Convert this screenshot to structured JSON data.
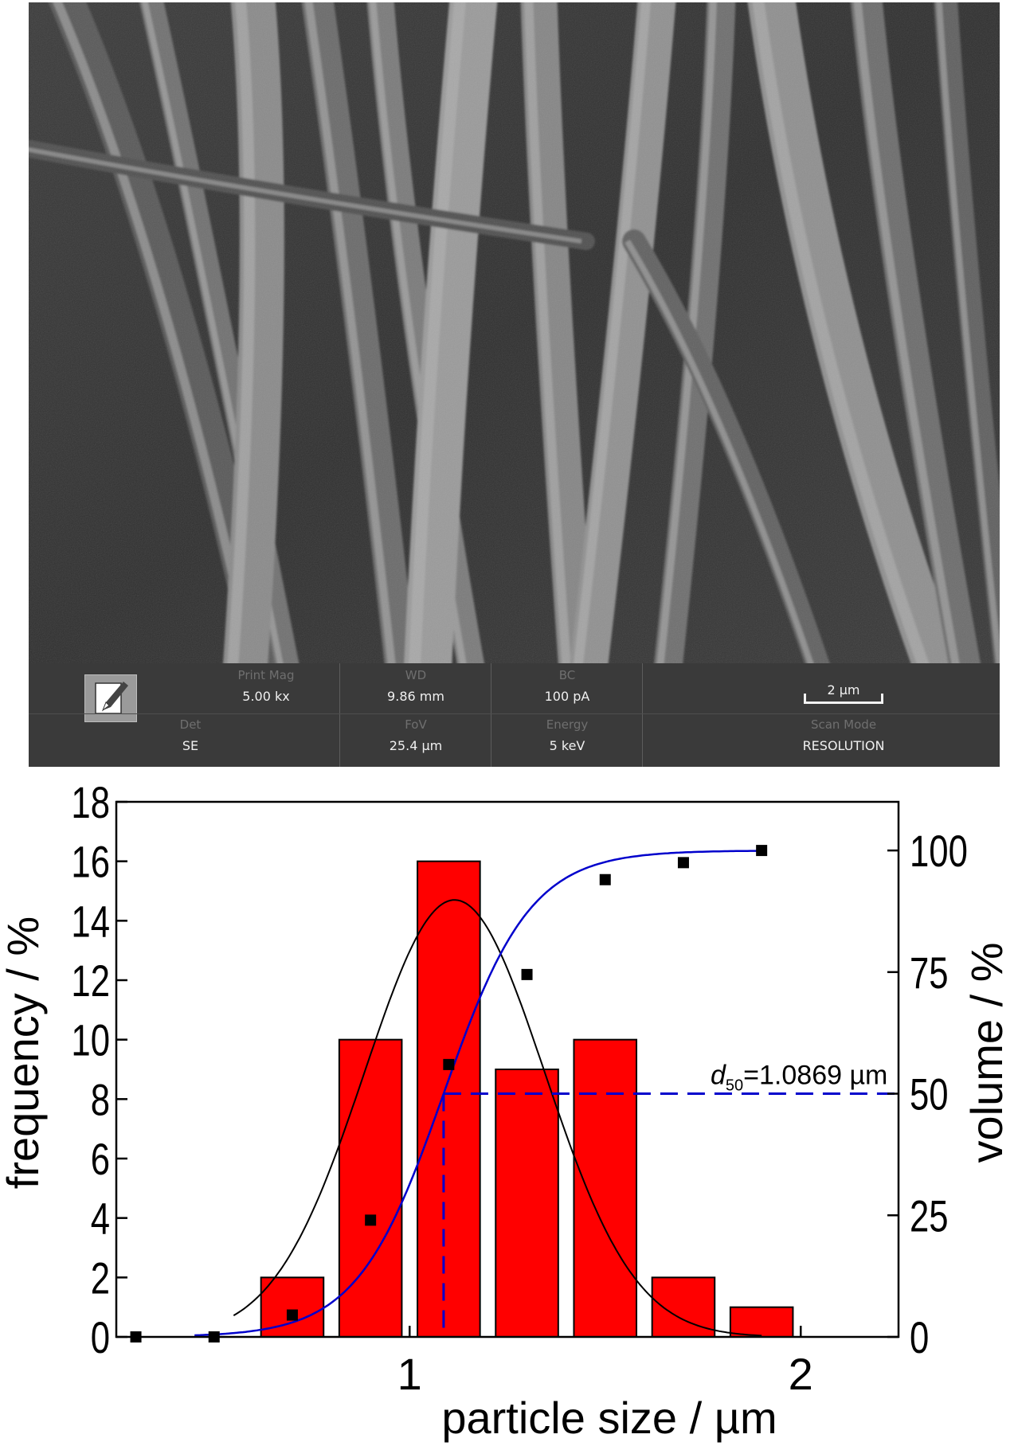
{
  "figure": {
    "sem_info_bar": {
      "fields": [
        {
          "label": "Print Mag",
          "value": "5.00 kx"
        },
        {
          "label": "WD",
          "value": "9.86 mm"
        },
        {
          "label": "BC",
          "value": "100 pA"
        },
        {
          "label": "Det",
          "value": "SE"
        },
        {
          "label": "FoV",
          "value": "25.4 µm"
        },
        {
          "label": "Energy",
          "value": "5 keV"
        },
        {
          "label": "Scan Mode",
          "value": "RESOLUTION"
        }
      ],
      "scale_bar": "2 µm",
      "logo_icon": "pen-edit-icon"
    }
  },
  "chart_data": {
    "type": "bar",
    "xlabel": "particle size / µm",
    "ylabel": "frequency / %",
    "ylabel_right": "volume / %",
    "xlim": [
      0.25,
      2.25
    ],
    "ylim": [
      0,
      18
    ],
    "ylim_right": [
      0,
      110
    ],
    "x_ticks": [
      1,
      2
    ],
    "y_ticks": [
      0,
      2,
      4,
      6,
      8,
      10,
      12,
      14,
      16,
      18
    ],
    "y_right_ticks": [
      0,
      25,
      50,
      75,
      100
    ],
    "bins": {
      "centers": [
        0.7,
        0.9,
        1.1,
        1.3,
        1.5,
        1.7,
        1.9
      ],
      "width": 0.2,
      "values": [
        2,
        10,
        16,
        9,
        10,
        2,
        1
      ],
      "color": "#ff0000"
    },
    "normal_fit": {
      "color": "#000000",
      "mean": 1.115,
      "sd": 0.23,
      "peak": 14.7,
      "x_range": [
        0.55,
        1.9
      ]
    },
    "cumulative_volume": {
      "color": "#0000cc",
      "points": {
        "x": [
          0.3,
          0.5,
          0.7,
          0.9,
          1.1,
          1.3,
          1.5,
          1.7,
          1.9
        ],
        "y": [
          0,
          0,
          4.5,
          24,
          56,
          74.5,
          94,
          97.5,
          100
        ]
      },
      "fit": {
        "x50": 1.0869,
        "k": 9.0,
        "top": 100,
        "x_range": [
          0.45,
          1.9
        ]
      }
    },
    "d50": {
      "value": 1.0869,
      "volume": 50,
      "label_symbol": "d",
      "label_subscript": "50",
      "label_rest": "=1.0869 µm",
      "color": "#0000cc"
    }
  }
}
